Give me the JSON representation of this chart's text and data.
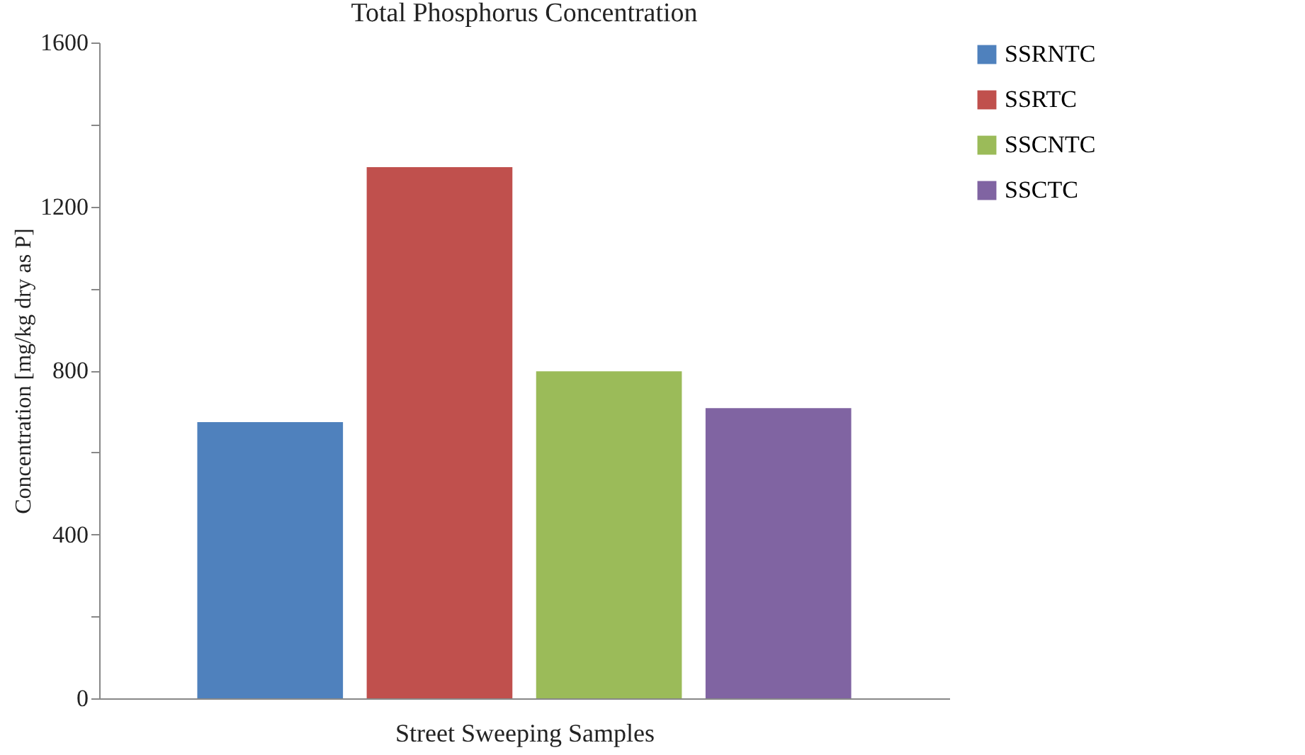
{
  "chart_data": {
    "type": "bar",
    "title": "Total Phosphorus Concentration",
    "xlabel": "Street Sweeping Samples",
    "ylabel": "Concentration [mg/kg dry as P]",
    "categories": [
      null
    ],
    "series": [
      {
        "name": "SSRNTC",
        "color": "#4f81bd",
        "values": [
          674
        ]
      },
      {
        "name": "SSRTC",
        "color": "#c0504d",
        "values": [
          1296
        ]
      },
      {
        "name": "SSCNTC",
        "color": "#9bbb59",
        "values": [
          798
        ]
      },
      {
        "name": "SSCTC",
        "color": "#8064a2",
        "values": [
          708
        ]
      }
    ],
    "ylim": [
      0,
      1600
    ],
    "yticks": [
      0,
      {
        "value": 200,
        "label": null
      },
      400,
      {
        "value": 600,
        "label": null
      },
      800,
      {
        "value": 1000,
        "label": null
      },
      1200,
      {
        "value": 1400,
        "label": null
      },
      1600
    ],
    "grid": false,
    "legend": "right"
  }
}
